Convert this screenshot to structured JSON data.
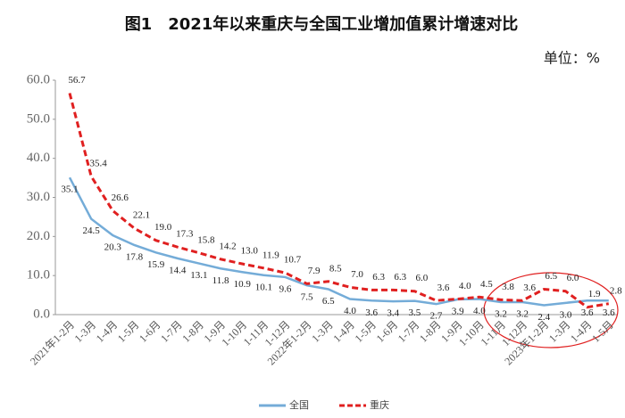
{
  "chart_data": {
    "type": "line",
    "title": "图1　2021年以来重庆与全国工业增加值累计增速对比",
    "unit": "单位：%",
    "categories": [
      "2021年1-2月",
      "1-3月",
      "1-4月",
      "1-5月",
      "1-6月",
      "1-7月",
      "1-8月",
      "1-9月",
      "1-10月",
      "1-11月",
      "1-12月",
      "2022年1-2月",
      "1-3月",
      "1-4月",
      "1-5月",
      "1-6月",
      "1-7月",
      "1-8月",
      "1-9月",
      "1-10月",
      "1-11月",
      "1-12月",
      "2023年1-2月",
      "1-3月",
      "1-4月",
      "1-5月"
    ],
    "series": [
      {
        "name": "全国",
        "color": "#74acd8",
        "dash": false,
        "values": [
          35.1,
          24.5,
          20.3,
          17.8,
          15.9,
          14.4,
          13.1,
          11.8,
          10.9,
          10.1,
          9.6,
          7.5,
          6.5,
          4.0,
          3.6,
          3.4,
          3.5,
          2.7,
          3.9,
          4.0,
          3.2,
          3.2,
          2.4,
          3.0,
          3.6,
          3.6
        ],
        "value_labels": [
          "35.1",
          "24.5",
          "20.3",
          "17.8",
          "15.9",
          "14.4",
          "13.1",
          "11.8",
          "10.9",
          "10.1",
          "9.6",
          "7.5",
          "6.5",
          "4.0",
          "3.6",
          "3.4",
          "3.5",
          "2.7",
          "3.9",
          "4.0",
          "3.2",
          "3.2",
          "2.4",
          "3.0",
          "3.6",
          "3.6"
        ]
      },
      {
        "name": "重庆",
        "color": "#e02020",
        "dash": true,
        "values": [
          56.7,
          35.4,
          26.6,
          22.1,
          19.0,
          17.3,
          15.8,
          14.2,
          13.0,
          11.9,
          10.7,
          7.9,
          8.5,
          7.0,
          6.3,
          6.3,
          6.0,
          3.6,
          4.0,
          4.5,
          3.8,
          3.6,
          6.5,
          6.0,
          1.9,
          2.8
        ],
        "value_labels": [
          "56.7",
          "35.4",
          "26.6",
          "22.1",
          "19.0",
          "17.3",
          "15.8",
          "14.2",
          "13.0",
          "11.9",
          "10.7",
          "7.9",
          "8.5",
          "7.0",
          "6.3",
          "6.3",
          "6.0",
          "3.6",
          "4.0",
          "4.5",
          "3.8",
          "3.6",
          "6.5",
          "6.0",
          "1.9",
          "2.8"
        ]
      }
    ],
    "ylim": [
      0,
      60
    ],
    "yticks": [
      {
        "value": 0,
        "label": "0.0"
      },
      {
        "value": 10,
        "label": "10.0"
      },
      {
        "value": 20,
        "label": "20.0"
      },
      {
        "value": 30,
        "label": "30.0"
      },
      {
        "value": 40,
        "label": "40.0"
      },
      {
        "value": 50,
        "label": "50.0"
      },
      {
        "value": 60,
        "label": "60.0"
      }
    ]
  }
}
